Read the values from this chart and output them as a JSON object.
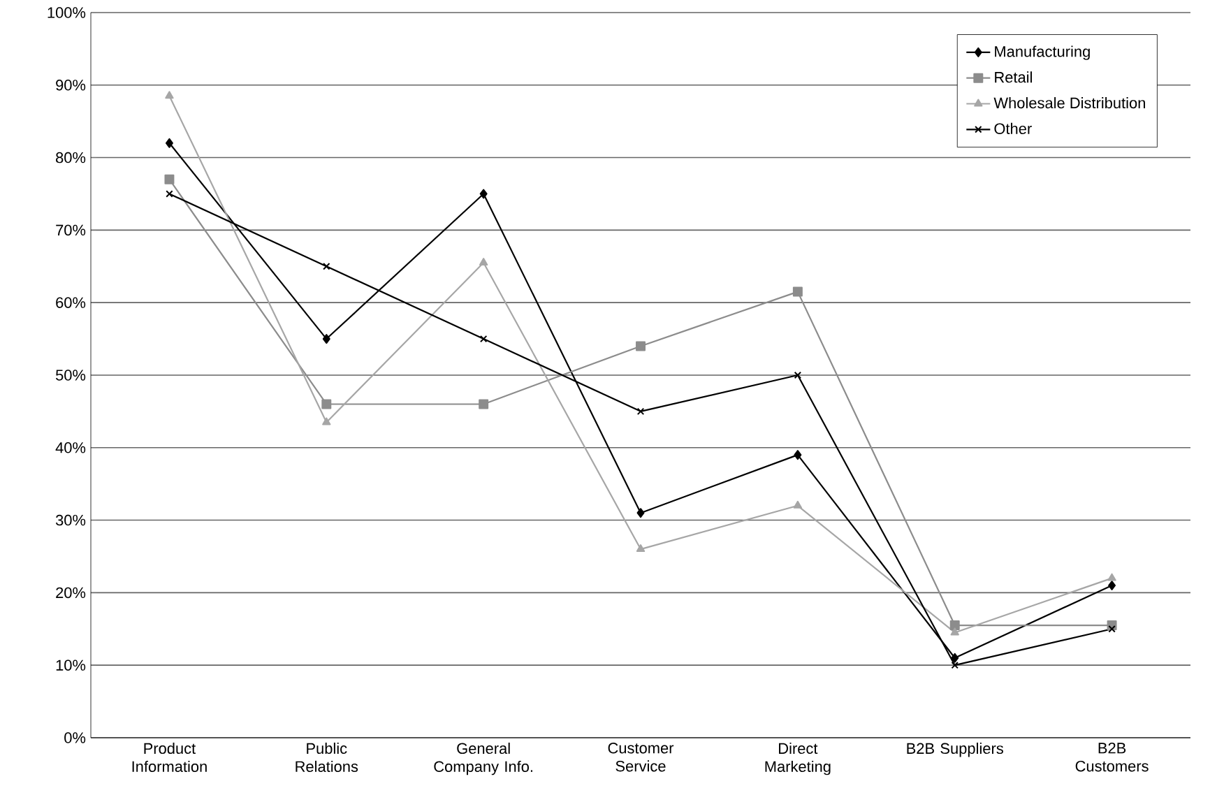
{
  "chart_data": {
    "type": "line",
    "categories": [
      "Product Information",
      "Public Relations",
      "General Company Info.",
      "Customer Service",
      "Direct Marketing",
      "B2B Suppliers",
      "B2B Customers"
    ],
    "series": [
      {
        "name": "Manufacturing",
        "color": "#000000",
        "marker": "diamond",
        "values": [
          82,
          55,
          75,
          31,
          39,
          11,
          21
        ]
      },
      {
        "name": "Retail",
        "color": "#8c8c8c",
        "marker": "square",
        "values": [
          77,
          46,
          46,
          54,
          61.5,
          15.5,
          15.5
        ]
      },
      {
        "name": "Wholesale Distribution",
        "color": "#a6a6a6",
        "marker": "triangle",
        "values": [
          88.5,
          43.5,
          65.5,
          26,
          32,
          14.5,
          22
        ]
      },
      {
        "name": "Other",
        "color": "#000000",
        "marker": "cross",
        "values": [
          75,
          65,
          55,
          45,
          50,
          10,
          15
        ]
      }
    ],
    "ylim": [
      0,
      100
    ],
    "yticks": [
      {
        "value": 0,
        "label": "0%"
      },
      {
        "value": 10,
        "label": "10%"
      },
      {
        "value": 20,
        "label": "20%"
      },
      {
        "value": 30,
        "label": "30%"
      },
      {
        "value": 40,
        "label": "40%"
      },
      {
        "value": 50,
        "label": "50%"
      },
      {
        "value": 60,
        "label": "60%"
      },
      {
        "value": 70,
        "label": "70%"
      },
      {
        "value": 80,
        "label": "80%"
      },
      {
        "value": 90,
        "label": "90%"
      },
      {
        "value": 100,
        "label": "100%"
      }
    ],
    "grid": "y",
    "legend": "top right",
    "line_style": "solid"
  }
}
